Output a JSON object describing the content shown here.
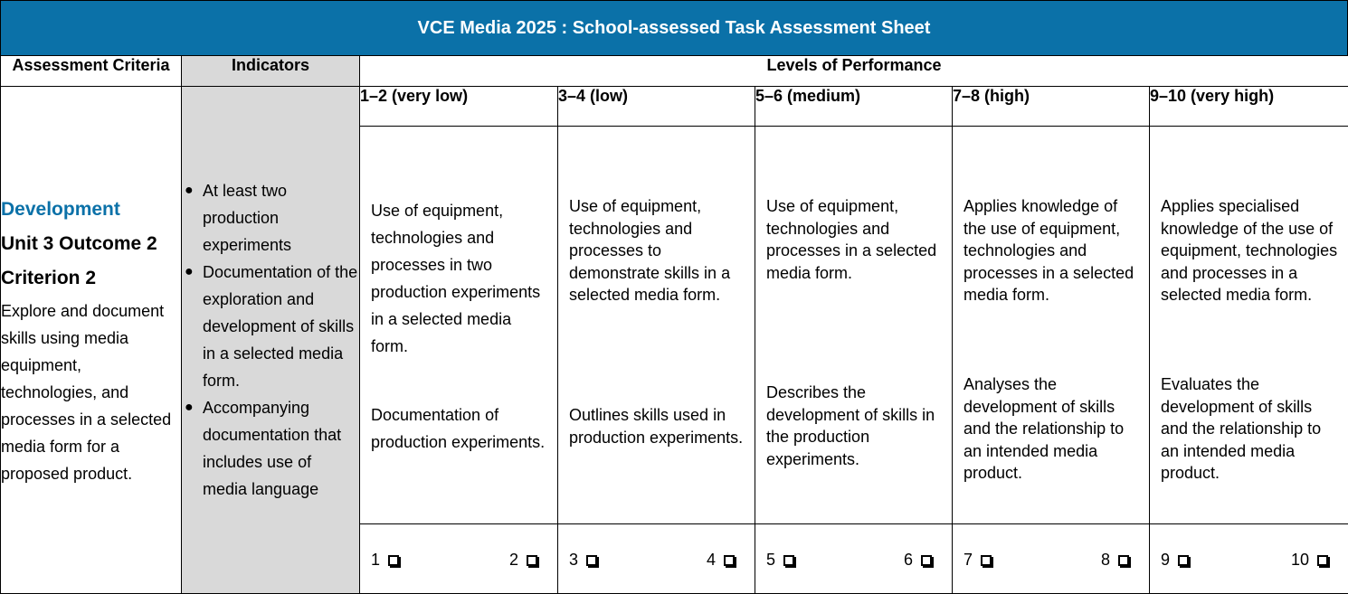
{
  "title": "VCE Media 2025 : School-assessed Task Assessment Sheet",
  "headers": {
    "criteria": "Assessment Criteria",
    "indicators": "Indicators",
    "levels": "Levels of Performance"
  },
  "levels": [
    {
      "label": "1–2 (very low)",
      "desc1": "Use of equipment, technologies and processes in two production experiments in a selected media form.",
      "desc2": "Documentation of production experiments.",
      "score_low": "1",
      "score_high": "2"
    },
    {
      "label": "3–4 (low)",
      "desc1": "Use of equipment, technologies and processes to demonstrate skills in a selected media form.",
      "desc2": "Outlines skills used in production experiments.",
      "score_low": "3",
      "score_high": "4"
    },
    {
      "label": "5–6 (medium)",
      "desc1": "Use of equipment, technologies and processes in a selected media form.",
      "desc2": "Describes the development of skills in the production experiments.",
      "score_low": "5",
      "score_high": "6"
    },
    {
      "label": "7–8 (high)",
      "desc1": "Applies knowledge of the use of equipment, technologies and processes in a selected media form.",
      "desc2": "Analyses the development of skills and the relationship to an intended media product.",
      "score_low": "7",
      "score_high": "8"
    },
    {
      "label": "9–10 (very high)",
      "desc1": "Applies specialised knowledge of the use of equipment, technologies and processes in a selected media form.",
      "desc2": "Evaluates the development of skills and the relationship to an intended media product.",
      "score_low": "9",
      "score_high": "10"
    }
  ],
  "criterion": {
    "name": "Development",
    "unit": "Unit 3 Outcome 2",
    "number": "Criterion 2",
    "description": "Explore and document skills using media equipment, technologies, and processes in a selected media form for a proposed product."
  },
  "indicators": [
    "At least two production experiments",
    "Documentation of the exploration and development of skills in a selected media form.",
    "Accompanying documentation that includes use of media language"
  ],
  "colors": {
    "banner": "#0b71a8",
    "criterion_name": "#0b71a8",
    "indicator_bg": "#d9d9d9"
  },
  "icons": {
    "checkbox": "checkbox-icon",
    "bullet": "bullet-icon"
  }
}
